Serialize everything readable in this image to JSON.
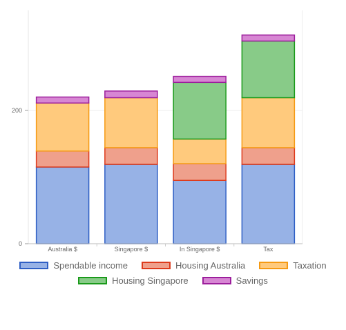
{
  "chart_data": {
    "type": "bar",
    "stacked": true,
    "categories": [
      "Australia $",
      "Singapore $",
      "In Singapore $",
      "Tax"
    ],
    "yticks": [
      0,
      200
    ],
    "ylim": [
      0,
      350
    ],
    "grid": true,
    "legend_position": "bottom",
    "series": [
      {
        "name": "Spendable income",
        "values": [
          115,
          119,
          95,
          119
        ],
        "fill": "#97b2e6",
        "stroke": "#2f5fc4"
      },
      {
        "name": "Housing Australia",
        "values": [
          24,
          25,
          25,
          25
        ],
        "fill": "#efa08c",
        "stroke": "#dd3b1c"
      },
      {
        "name": "Taxation",
        "values": [
          72,
          75,
          37,
          75
        ],
        "fill": "#ffca7d",
        "stroke": "#f59a14"
      },
      {
        "name": "Housing Singapore",
        "values": [
          0,
          0,
          85,
          85
        ],
        "fill": "#88cb88",
        "stroke": "#1a9a1a"
      },
      {
        "name": "Savings",
        "values": [
          9,
          10,
          9,
          9
        ],
        "fill": "#d786d3",
        "stroke": "#9c1e9c"
      }
    ]
  }
}
